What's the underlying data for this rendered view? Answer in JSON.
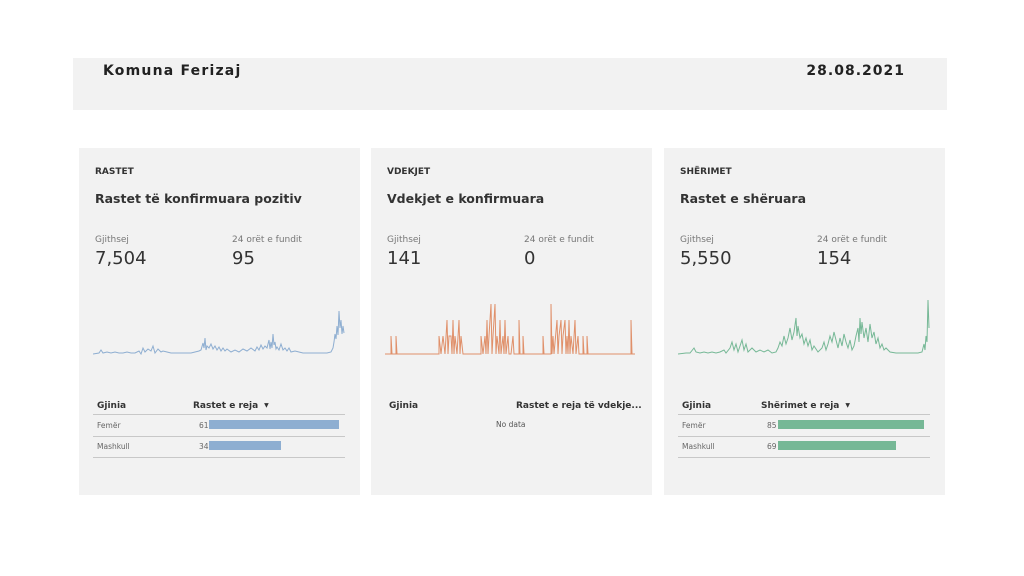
{
  "header": {
    "title": "Komuna Ferizaj",
    "date": "28.08.2021"
  },
  "cards": [
    {
      "section": "RASTET",
      "heading": "Rastet të konfirmuara pozitiv",
      "total_label": "Gjithsej",
      "total_value": "7,504",
      "last24_label": "24 orët e fundit",
      "last24_value": "95",
      "gender_header": "Gjinia",
      "measure_header": "Rastet e reja",
      "sort_icon": "sort-desc-icon",
      "color": "#8eaed1",
      "rows": [
        {
          "label": "Femër",
          "value": "61",
          "fraction": 1.0
        },
        {
          "label": "Mashkull",
          "value": "34",
          "fraction": 0.557
        }
      ]
    },
    {
      "section": "VDEKJET",
      "heading": "Vdekjet e konfirmuara",
      "total_label": "Gjithsej",
      "total_value": "141",
      "last24_label": "24 orët e fundit",
      "last24_value": "0",
      "gender_header": "Gjinia",
      "measure_header": "Rastet e reja të vdekje...",
      "no_data": "No data",
      "color": "#e0906a"
    },
    {
      "section": "SHËRIMET",
      "heading": "Rastet e shëruara",
      "total_label": "Gjithsej",
      "total_value": "5,550",
      "last24_label": "24 orët e fundit",
      "last24_value": "154",
      "gender_header": "Gjinia",
      "measure_header": "Shërimet e reja",
      "sort_icon": "sort-desc-icon",
      "color": "#76b896",
      "rows": [
        {
          "label": "Femër",
          "value": "85",
          "fraction": 1.0
        },
        {
          "label": "Mashkull",
          "value": "69",
          "fraction": 0.81
        }
      ]
    }
  ]
}
